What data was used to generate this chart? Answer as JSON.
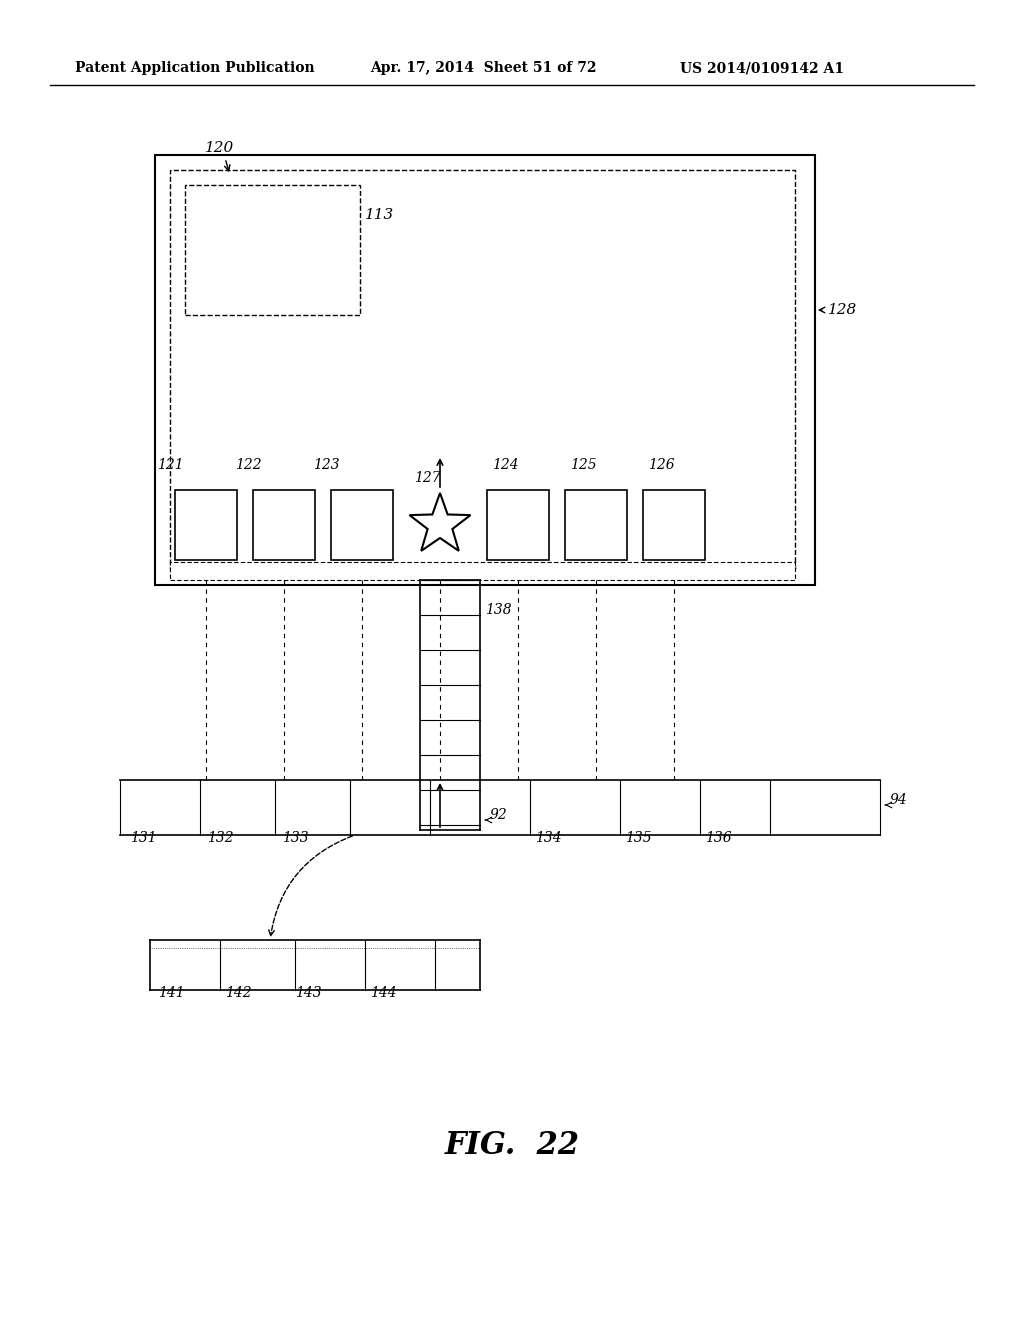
{
  "bg_color": "#ffffff",
  "header_text1": "Patent Application Publication",
  "header_text2": "Apr. 17, 2014  Sheet 51 of 72",
  "header_text3": "US 2014/0109142 A1",
  "fig_label": "FIG.  22",
  "label_120": "120",
  "label_113": "113",
  "label_128": "128",
  "label_121": "121",
  "label_122": "122",
  "label_123": "123",
  "label_127": "127",
  "label_124": "124",
  "label_125": "125",
  "label_126": "126",
  "label_131": "131",
  "label_132": "132",
  "label_133": "133",
  "label_134": "134",
  "label_135": "135",
  "label_136": "136",
  "label_94": "94",
  "label_138": "138",
  "label_92": "92",
  "label_141": "141",
  "label_142": "142",
  "label_143": "143",
  "label_144": "144"
}
